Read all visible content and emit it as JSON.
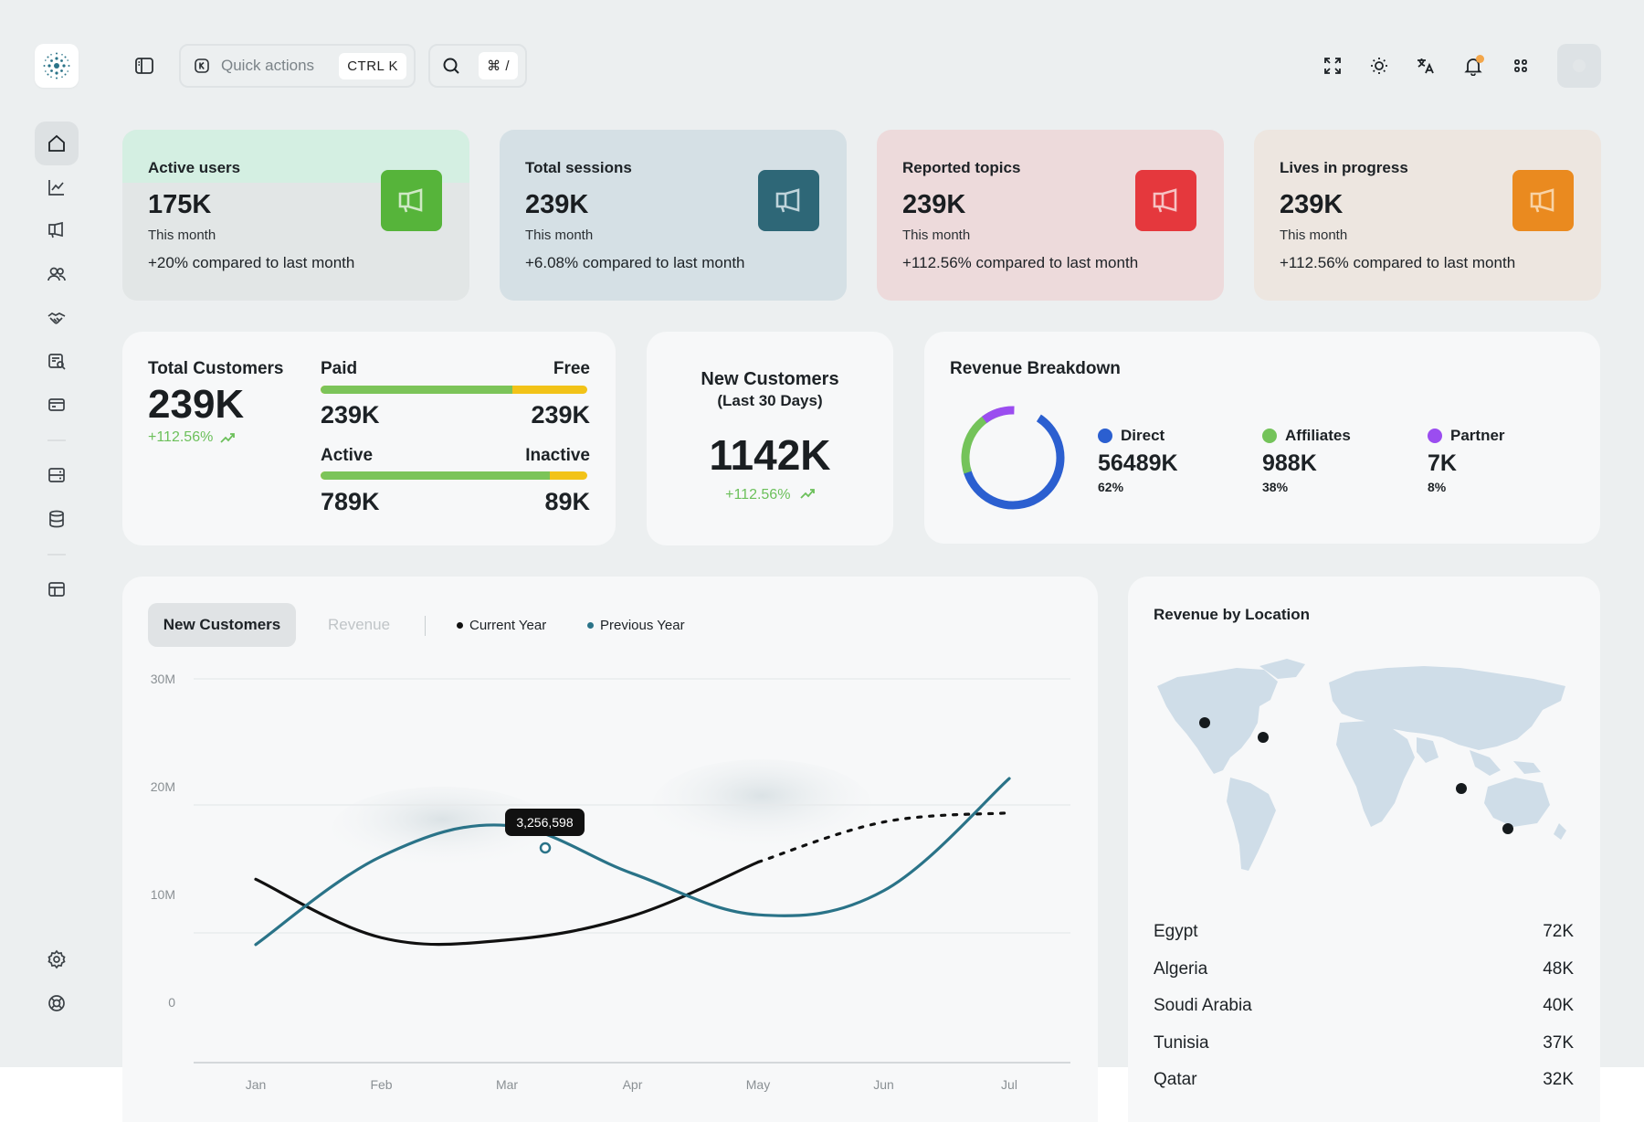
{
  "topbar": {
    "quick_actions_label": "Quick actions",
    "quick_actions_shortcut": "CTRL K",
    "search_shortcut": "⌘ /"
  },
  "stats": [
    {
      "title": "Active users",
      "value": "175K",
      "period": "This month",
      "compare": "+20% compared to last month",
      "accent": "#56b43a",
      "bg": "#e2e6e6",
      "band": "#d4efe2"
    },
    {
      "title": "Total sessions",
      "value": "239K",
      "period": "This month",
      "compare": "+6.08% compared to last month",
      "accent": "#2e6777",
      "bg": "#d5e0e5"
    },
    {
      "title": "Reported topics",
      "value": "239K",
      "period": "This month",
      "compare": "+112.56% compared to last month",
      "accent": "#e5383d",
      "bg": "#eddadb"
    },
    {
      "title": "Lives in progress",
      "value": "239K",
      "period": "This month",
      "compare": "+112.56% compared to last month",
      "accent": "#ea8a1f",
      "bg": "#ede6e0"
    }
  ],
  "total_customers": {
    "title": "Total Customers",
    "value": "239K",
    "growth": "+112.56%",
    "paid_label": "Paid",
    "free_label": "Free",
    "paid_value": "239K",
    "free_value": "239K",
    "paid_share": 0.72,
    "active_label": "Active",
    "inactive_label": "Inactive",
    "active_value": "789K",
    "inactive_value": "89K",
    "active_share": 0.86
  },
  "new_customers": {
    "title": "New Customers",
    "subtitle": "(Last 30 Days)",
    "value": "1142K",
    "growth": "+112.56%"
  },
  "revenue_breakdown": {
    "title": "Revenue Breakdown",
    "items": [
      {
        "label": "Direct",
        "value": "56489K",
        "pct": "62%",
        "color": "#2b5fd0"
      },
      {
        "label": "Affiliates",
        "value": "988K",
        "pct": "38%",
        "color": "#74c35a"
      },
      {
        "label": "Partner",
        "value": "7K",
        "pct": "8%",
        "color": "#9b4df0"
      }
    ]
  },
  "chart": {
    "tab_active": "New Customers",
    "tab_inactive": "Revenue",
    "legend_current": "Current Year",
    "legend_previous": "Previous Year",
    "tooltip": "3,256,598"
  },
  "chart_data": {
    "type": "line",
    "x": [
      "Jan",
      "Feb",
      "Mar",
      "Apr",
      "May",
      "Jun",
      "Jul"
    ],
    "yticks": [
      "30M",
      "20M",
      "10M",
      "0"
    ],
    "ylim": [
      0,
      30000000
    ],
    "series": [
      {
        "name": "Current Year",
        "color": "#111111",
        "values": [
          12500000,
          7400000,
          7200000,
          9300000,
          14000000,
          17500000,
          18300000
        ],
        "projected_from_index": 4
      },
      {
        "name": "Previous Year",
        "color": "#2a7388",
        "values": [
          6800000,
          14500000,
          17200000,
          13000000,
          9400000,
          11500000,
          21300000
        ]
      }
    ],
    "legend": "top-left",
    "grid": true
  },
  "location": {
    "title": "Revenue by Location",
    "rows": [
      {
        "country": "Egypt",
        "value": "72K"
      },
      {
        "country": "Algeria",
        "value": "48K"
      },
      {
        "country": "Soudi Arabia",
        "value": "40K"
      },
      {
        "country": "Tunisia",
        "value": "37K"
      },
      {
        "country": "Qatar",
        "value": "32K"
      }
    ]
  }
}
